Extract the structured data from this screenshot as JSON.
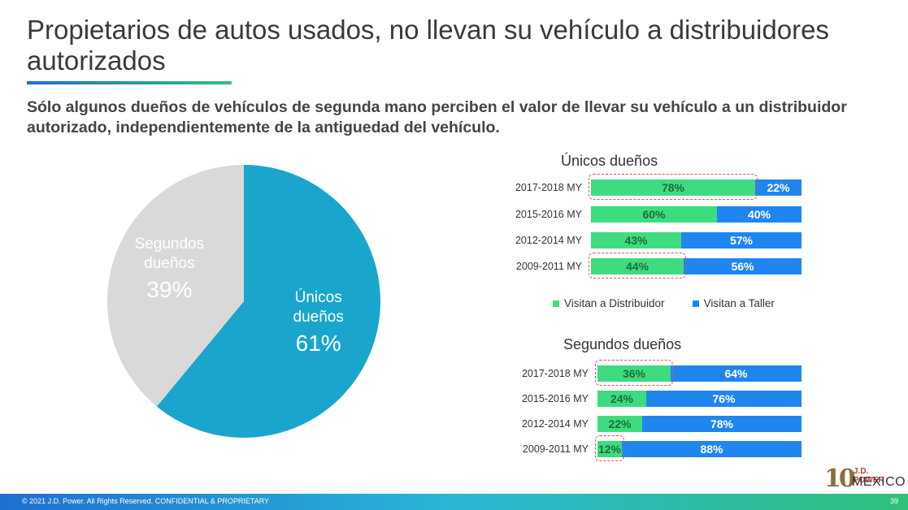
{
  "header": {
    "title": "Propietarios de autos usados, no llevan su vehículo a distribuidores autorizados",
    "subtitle": "Sólo algunos dueños de vehículos de segunda mano perciben el valor de llevar su vehículo a un distribuidor autorizado, independientemente de la antiguedad del vehículo."
  },
  "colors": {
    "pie_unicos": "#1aa6cc",
    "pie_segundos": "#d9d9d9",
    "green": "#3ddc7f",
    "blue": "#1f86f0",
    "highlight": "#e05555"
  },
  "chart_data": [
    {
      "type": "pie",
      "title": "",
      "slices": [
        {
          "name_line1": "Únicos",
          "name_line2": "dueños",
          "value": 61,
          "label": "61%"
        },
        {
          "name_line1": "Segundos",
          "name_line2": "dueños",
          "value": 39,
          "label": "39%"
        }
      ]
    },
    {
      "type": "bar",
      "stacked": true,
      "orientation": "horizontal",
      "title": "Únicos dueños",
      "categories": [
        "2017-2018 MY",
        "2015-2016 MY",
        "2012-2014 MY",
        "2009-2011 MY"
      ],
      "series": [
        {
          "name": "Visitan a Distribuidor",
          "values": [
            78,
            60,
            43,
            44
          ],
          "labels": [
            "78%",
            "60%",
            "43%",
            "44%"
          ]
        },
        {
          "name": "Visitan a Taller",
          "values": [
            22,
            40,
            57,
            56
          ],
          "labels": [
            "22%",
            "40%",
            "57%",
            "56%"
          ]
        }
      ],
      "highlighted": [
        "2017-2018 MY",
        "2009-2011 MY"
      ]
    },
    {
      "type": "bar",
      "stacked": true,
      "orientation": "horizontal",
      "title": "Segundos dueños",
      "categories": [
        "2017-2018 MY",
        "2015-2016 MY",
        "2012-2014 MY",
        "2009-2011 MY"
      ],
      "series": [
        {
          "name": "Visitan a Distribuidor",
          "values": [
            36,
            24,
            22,
            12
          ],
          "labels": [
            "36%",
            "24%",
            "22%",
            "12%"
          ]
        },
        {
          "name": "Visitan a Taller",
          "values": [
            64,
            76,
            78,
            88
          ],
          "labels": [
            "64%",
            "76%",
            "78%",
            "88%"
          ]
        }
      ],
      "highlighted": [
        "2017-2018 MY",
        "2009-2011 MY"
      ]
    }
  ],
  "legend": {
    "items": [
      {
        "label": "Visitan a Distribuidor",
        "color": "#3ddc7f"
      },
      {
        "label": "Visitan a Taller",
        "color": "#1f86f0"
      }
    ]
  },
  "footer": {
    "copyright": "© 2021 J.D. Power. All Rights Reserved. CONFIDENTIAL & PROPRIETARY",
    "page_number": "39"
  },
  "logo": {
    "number": "10",
    "line1": "J.D. POWER",
    "line2": "MEXICO"
  }
}
